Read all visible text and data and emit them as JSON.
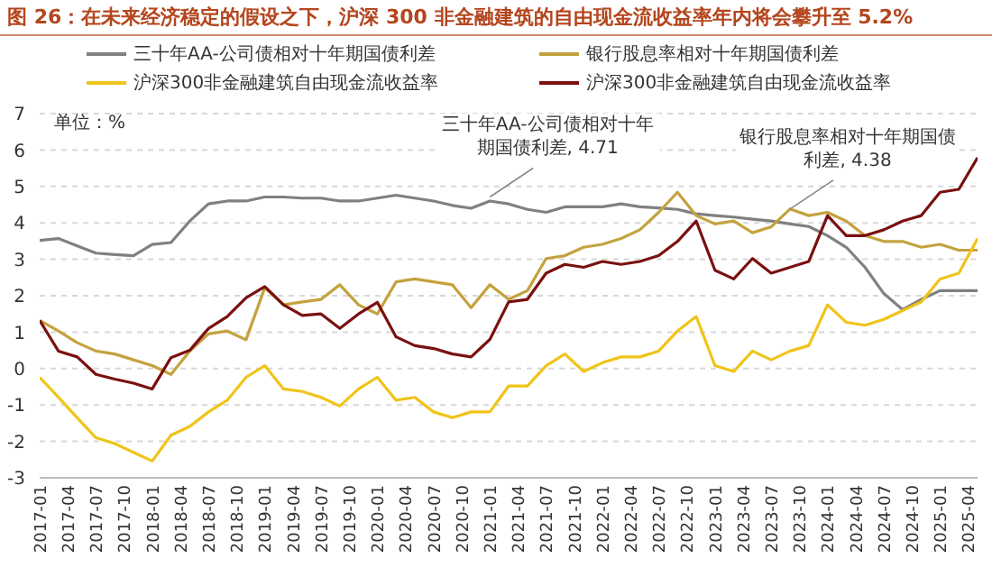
{
  "chart_data": {
    "type": "line",
    "title": "图 26：在未来经济稳定的假设之下，沪深 300 非金融建筑的自由现金流收益率年内将会攀升至 5.2%",
    "x": [
      "2017-01",
      "2017-03",
      "2017-05",
      "2017-07",
      "2017-09",
      "2017-11",
      "2018-01",
      "2018-03",
      "2018-05",
      "2018-07",
      "2018-09",
      "2018-11",
      "2019-01",
      "2019-03",
      "2019-05",
      "2019-07",
      "2019-09",
      "2019-11",
      "2020-01",
      "2020-03",
      "2020-05",
      "2020-07",
      "2020-09",
      "2020-11",
      "2021-01",
      "2021-03",
      "2021-05",
      "2021-07",
      "2021-09",
      "2021-11",
      "2022-01",
      "2022-03",
      "2022-05",
      "2022-07",
      "2022-09",
      "2022-11",
      "2023-01",
      "2023-03",
      "2023-05",
      "2023-07",
      "2023-09",
      "2023-11",
      "2024-01",
      "2024-03",
      "2024-05",
      "2024-07",
      "2024-09",
      "2024-11",
      "2025-01",
      "2025-03",
      "2025-05"
    ],
    "series": [
      {
        "name": "三十年AA-公司债相对十年期国债利差",
        "color": "#808080",
        "values": [
          3.52,
          3.57,
          3.37,
          3.17,
          3.13,
          3.1,
          3.41,
          3.46,
          4.05,
          4.52,
          4.6,
          4.6,
          4.71,
          4.71,
          4.68,
          4.68,
          4.6,
          4.6,
          4.68,
          4.76,
          4.68,
          4.6,
          4.48,
          4.4,
          4.6,
          4.52,
          4.37,
          4.29,
          4.44,
          4.44,
          4.44,
          4.52,
          4.44,
          4.41,
          4.37,
          4.25,
          4.2,
          4.16,
          4.1,
          4.05,
          3.97,
          3.9,
          3.65,
          3.33,
          2.78,
          2.06,
          1.62,
          1.9,
          2.14,
          2.14,
          2.14
        ]
      },
      {
        "name": "银行股息率相对十年期国债利差",
        "color": "#c4a23e",
        "values": [
          1.32,
          1.03,
          0.71,
          0.48,
          0.4,
          0.24,
          0.08,
          -0.16,
          0.48,
          0.95,
          1.03,
          0.79,
          2.22,
          1.75,
          1.83,
          1.9,
          2.3,
          1.75,
          1.5,
          2.38,
          2.46,
          2.38,
          2.3,
          1.67,
          2.3,
          1.9,
          2.14,
          3.02,
          3.1,
          3.33,
          3.41,
          3.57,
          3.81,
          4.29,
          4.84,
          4.2,
          3.97,
          4.05,
          3.73,
          3.89,
          4.38,
          4.2,
          4.29,
          4.05,
          3.65,
          3.49,
          3.49,
          3.33,
          3.41,
          3.25,
          3.25
        ]
      },
      {
        "name": "沪深300非金融建筑自由现金流收益率",
        "color": "#f0c419",
        "values": [
          -0.24,
          -0.79,
          -1.35,
          -1.9,
          -2.06,
          -2.3,
          -2.54,
          -1.83,
          -1.59,
          -1.19,
          -0.87,
          -0.24,
          0.08,
          -0.56,
          -0.63,
          -0.79,
          -1.03,
          -0.56,
          -0.24,
          -0.87,
          -0.79,
          -1.19,
          -1.35,
          -1.19,
          -1.19,
          -0.48,
          -0.48,
          0.08,
          0.4,
          -0.08,
          0.16,
          0.32,
          0.32,
          0.48,
          1.03,
          1.43,
          0.08,
          -0.08,
          0.48,
          0.24,
          0.48,
          0.63,
          1.75,
          1.27,
          1.19,
          1.35,
          1.59,
          1.83,
          2.46,
          2.62,
          3.57
        ]
      },
      {
        "name": "沪深300非金融建筑自由现金流收益率",
        "color": "#7a1010",
        "values": [
          1.32,
          0.48,
          0.32,
          -0.16,
          -0.29,
          -0.4,
          -0.56,
          0.3,
          0.5,
          1.1,
          1.43,
          1.94,
          2.25,
          1.75,
          1.46,
          1.5,
          1.1,
          1.5,
          1.82,
          0.87,
          0.63,
          0.55,
          0.4,
          0.32,
          0.8,
          1.83,
          1.9,
          2.62,
          2.86,
          2.78,
          2.94,
          2.86,
          2.94,
          3.1,
          3.49,
          4.05,
          2.7,
          2.46,
          3.02,
          2.62,
          2.78,
          2.94,
          4.2,
          3.65,
          3.65,
          3.81,
          4.05,
          4.2,
          4.84,
          4.92,
          5.79
        ]
      }
    ],
    "xlim": [
      "2017-01",
      "2025-05"
    ],
    "xticks": [
      "2017-01",
      "2017-04",
      "2017-07",
      "2017-10",
      "2018-01",
      "2018-04",
      "2018-07",
      "2018-10",
      "2019-01",
      "2019-04",
      "2019-07",
      "2019-10",
      "2020-01",
      "2020-04",
      "2020-07",
      "2020-10",
      "2021-01",
      "2021-04",
      "2021-07",
      "2021-10",
      "2022-01",
      "2022-04",
      "2022-07",
      "2022-10",
      "2023-01",
      "2023-04",
      "2023-07",
      "2023-10",
      "2024-01",
      "2024-04",
      "2024-07",
      "2024-10",
      "2025-01",
      "2025-04"
    ],
    "ylim": [
      -3,
      7
    ],
    "yticks": [
      -3,
      -2,
      -1,
      0,
      1,
      2,
      3,
      4,
      5,
      6,
      7
    ],
    "grid": "y",
    "legend": "top",
    "marker": "none",
    "line_style": "solid",
    "annotations": [
      "单位：%",
      {
        "text": "三十年AA-公司债相对十年期国债利差, 4.71",
        "x": "2021-01",
        "y": 4.71
      },
      {
        "text": "银行股息率相对十年期国债利差, 4.38",
        "x": "2023-09",
        "y": 4.38
      }
    ]
  }
}
